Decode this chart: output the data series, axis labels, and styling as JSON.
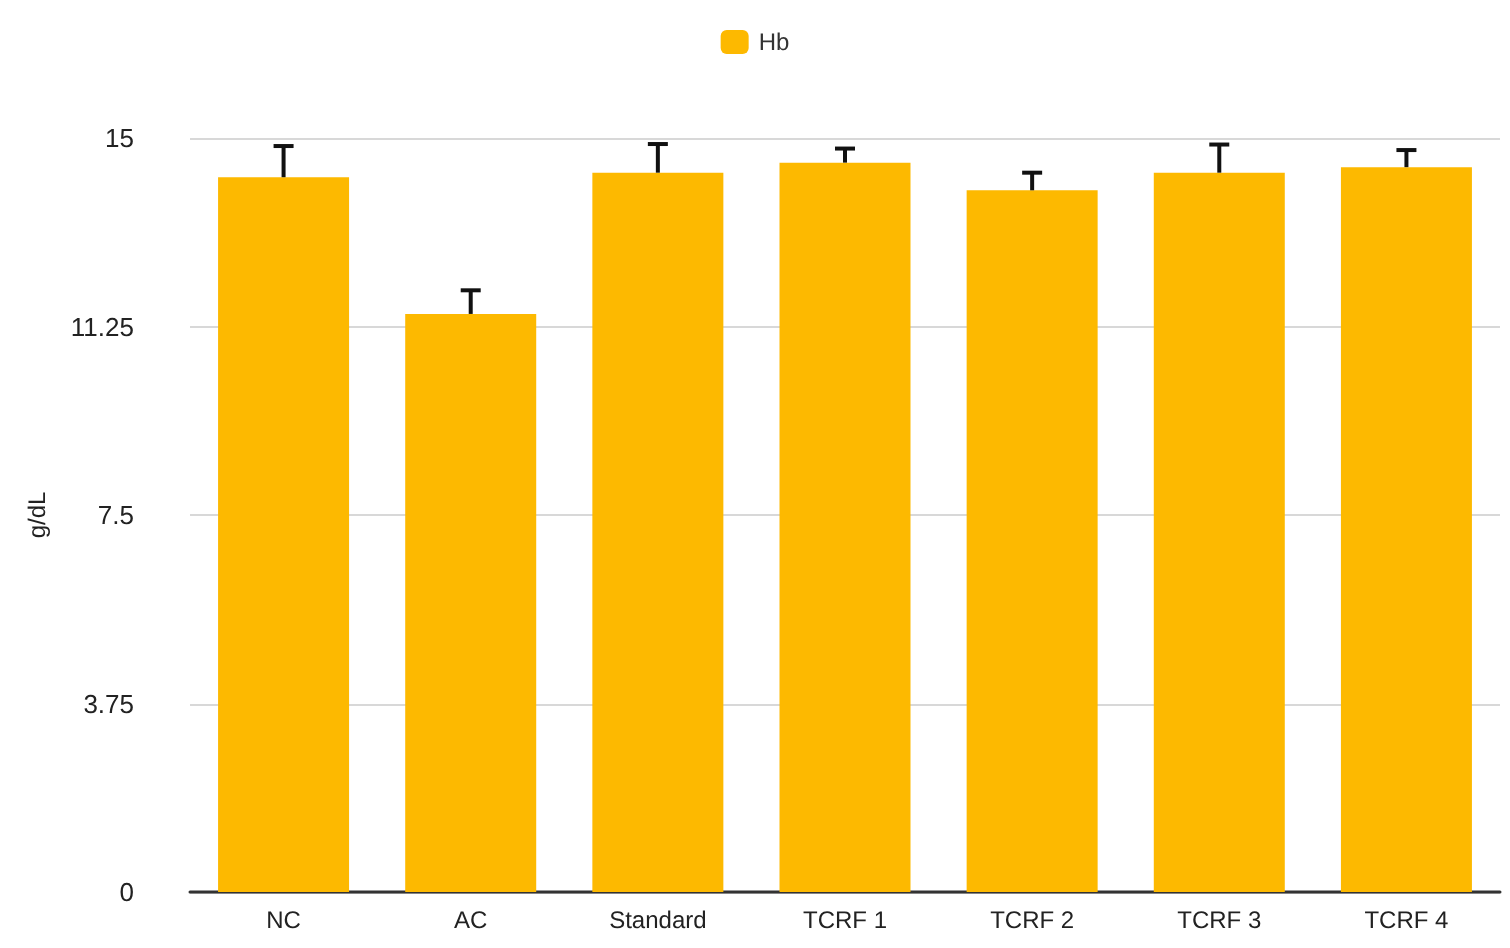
{
  "chart_data": {
    "type": "bar",
    "ylabel": "g/dL",
    "categories": [
      "NC",
      "AC",
      "Standard",
      "TCRF 1",
      "TCRF 2",
      "TCRF 3",
      "TCRF 4"
    ],
    "series": [
      {
        "name": "Hb",
        "color": "#fdb900",
        "values": [
          14.22,
          11.5,
          14.31,
          14.51,
          13.96,
          14.31,
          14.42
        ],
        "errors": [
          [
            14.22,
            14.84
          ],
          [
            11.5,
            11.97
          ],
          [
            14.31,
            14.88
          ],
          [
            14.51,
            14.79
          ],
          [
            13.96,
            14.31
          ],
          [
            14.31,
            14.87
          ],
          [
            14.42,
            14.76
          ]
        ]
      }
    ],
    "ylim": [
      0,
      15
    ],
    "yticks": [
      0,
      3.75,
      7.5,
      11.25,
      15
    ],
    "grid": "y",
    "legend": "top"
  }
}
